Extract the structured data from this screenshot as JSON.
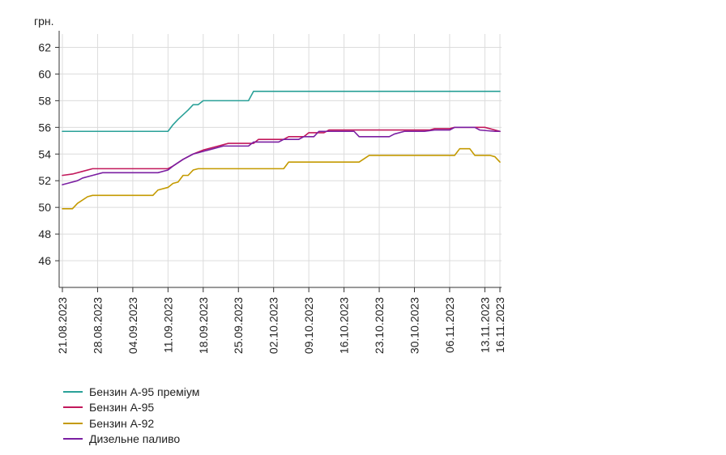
{
  "chart_data": {
    "type": "line",
    "ylabel": "грн.",
    "ylim": [
      44,
      63
    ],
    "yticks": [
      46,
      48,
      50,
      52,
      54,
      56,
      58,
      60,
      62
    ],
    "x_tick_labels": [
      "21.08.2023",
      "28.08.2023",
      "04.09.2023",
      "11.09.2023",
      "18.09.2023",
      "25.09.2023",
      "02.10.2023",
      "09.10.2023",
      "16.10.2023",
      "23.10.2023",
      "30.10.2023",
      "06.11.2023",
      "13.11.2023",
      "16.11.2023"
    ],
    "x_tick_days": [
      0,
      7,
      14,
      21,
      28,
      35,
      42,
      49,
      56,
      63,
      70,
      77,
      84,
      87
    ],
    "x_start_label": "21.08.2023",
    "x_end_label": "16.11.2023",
    "grid": true,
    "legend_position": "bottom-left",
    "series": [
      {
        "name": "Бензин А-95 преміум",
        "color": "#2aa198",
        "points": [
          [
            0,
            55.7
          ],
          [
            21,
            55.7
          ],
          [
            22,
            56.2
          ],
          [
            23,
            56.6
          ],
          [
            25,
            57.3
          ],
          [
            26,
            57.7
          ],
          [
            27,
            57.7
          ],
          [
            28,
            58.0
          ],
          [
            37,
            58.0
          ],
          [
            38,
            58.7
          ],
          [
            87,
            58.7
          ]
        ]
      },
      {
        "name": "Бензин А-95",
        "color": "#c2185b",
        "points": [
          [
            0,
            52.4
          ],
          [
            2,
            52.5
          ],
          [
            4,
            52.7
          ],
          [
            6,
            52.9
          ],
          [
            21,
            52.9
          ],
          [
            22,
            53.1
          ],
          [
            24,
            53.6
          ],
          [
            26,
            54.0
          ],
          [
            28,
            54.3
          ],
          [
            31,
            54.6
          ],
          [
            33,
            54.8
          ],
          [
            38,
            54.8
          ],
          [
            39,
            55.1
          ],
          [
            44,
            55.1
          ],
          [
            45,
            55.3
          ],
          [
            48,
            55.3
          ],
          [
            49,
            55.6
          ],
          [
            52,
            55.6
          ],
          [
            53,
            55.8
          ],
          [
            61,
            55.8
          ],
          [
            62,
            55.8
          ],
          [
            73,
            55.8
          ],
          [
            74,
            55.9
          ],
          [
            77,
            55.9
          ],
          [
            78,
            56.0
          ],
          [
            84,
            56.0
          ],
          [
            85,
            55.9
          ],
          [
            87,
            55.7
          ]
        ]
      },
      {
        "name": "Бензин А-92",
        "color": "#c49a00",
        "points": [
          [
            0,
            49.9
          ],
          [
            2,
            49.9
          ],
          [
            3,
            50.3
          ],
          [
            5,
            50.8
          ],
          [
            6,
            50.9
          ],
          [
            18,
            50.9
          ],
          [
            19,
            51.3
          ],
          [
            21,
            51.5
          ],
          [
            22,
            51.8
          ],
          [
            23,
            51.9
          ],
          [
            24,
            52.4
          ],
          [
            25,
            52.4
          ],
          [
            26,
            52.8
          ],
          [
            27,
            52.9
          ],
          [
            44,
            52.9
          ],
          [
            45,
            53.4
          ],
          [
            59,
            53.4
          ],
          [
            61,
            53.9
          ],
          [
            71,
            53.9
          ],
          [
            72,
            53.9
          ],
          [
            78,
            53.9
          ],
          [
            79,
            54.4
          ],
          [
            81,
            54.4
          ],
          [
            82,
            53.9
          ],
          [
            85,
            53.9
          ],
          [
            86,
            53.8
          ],
          [
            87,
            53.4
          ]
        ]
      },
      {
        "name": "Дизельне паливо",
        "color": "#7b1fa2",
        "points": [
          [
            0,
            51.7
          ],
          [
            1,
            51.8
          ],
          [
            3,
            52.0
          ],
          [
            4,
            52.2
          ],
          [
            6,
            52.4
          ],
          [
            8,
            52.6
          ],
          [
            19,
            52.6
          ],
          [
            21,
            52.8
          ],
          [
            22,
            53.1
          ],
          [
            24,
            53.6
          ],
          [
            26,
            54.0
          ],
          [
            28,
            54.2
          ],
          [
            30,
            54.4
          ],
          [
            32,
            54.6
          ],
          [
            37,
            54.6
          ],
          [
            38,
            54.9
          ],
          [
            43,
            54.9
          ],
          [
            44,
            55.1
          ],
          [
            47,
            55.1
          ],
          [
            48,
            55.3
          ],
          [
            50,
            55.3
          ],
          [
            51,
            55.7
          ],
          [
            58,
            55.7
          ],
          [
            59,
            55.3
          ],
          [
            65,
            55.3
          ],
          [
            66,
            55.5
          ],
          [
            68,
            55.7
          ],
          [
            72,
            55.7
          ],
          [
            74,
            55.8
          ],
          [
            77,
            55.8
          ],
          [
            78,
            56.0
          ],
          [
            82,
            56.0
          ],
          [
            83,
            55.8
          ],
          [
            86,
            55.7
          ],
          [
            87,
            55.7
          ]
        ]
      }
    ]
  }
}
